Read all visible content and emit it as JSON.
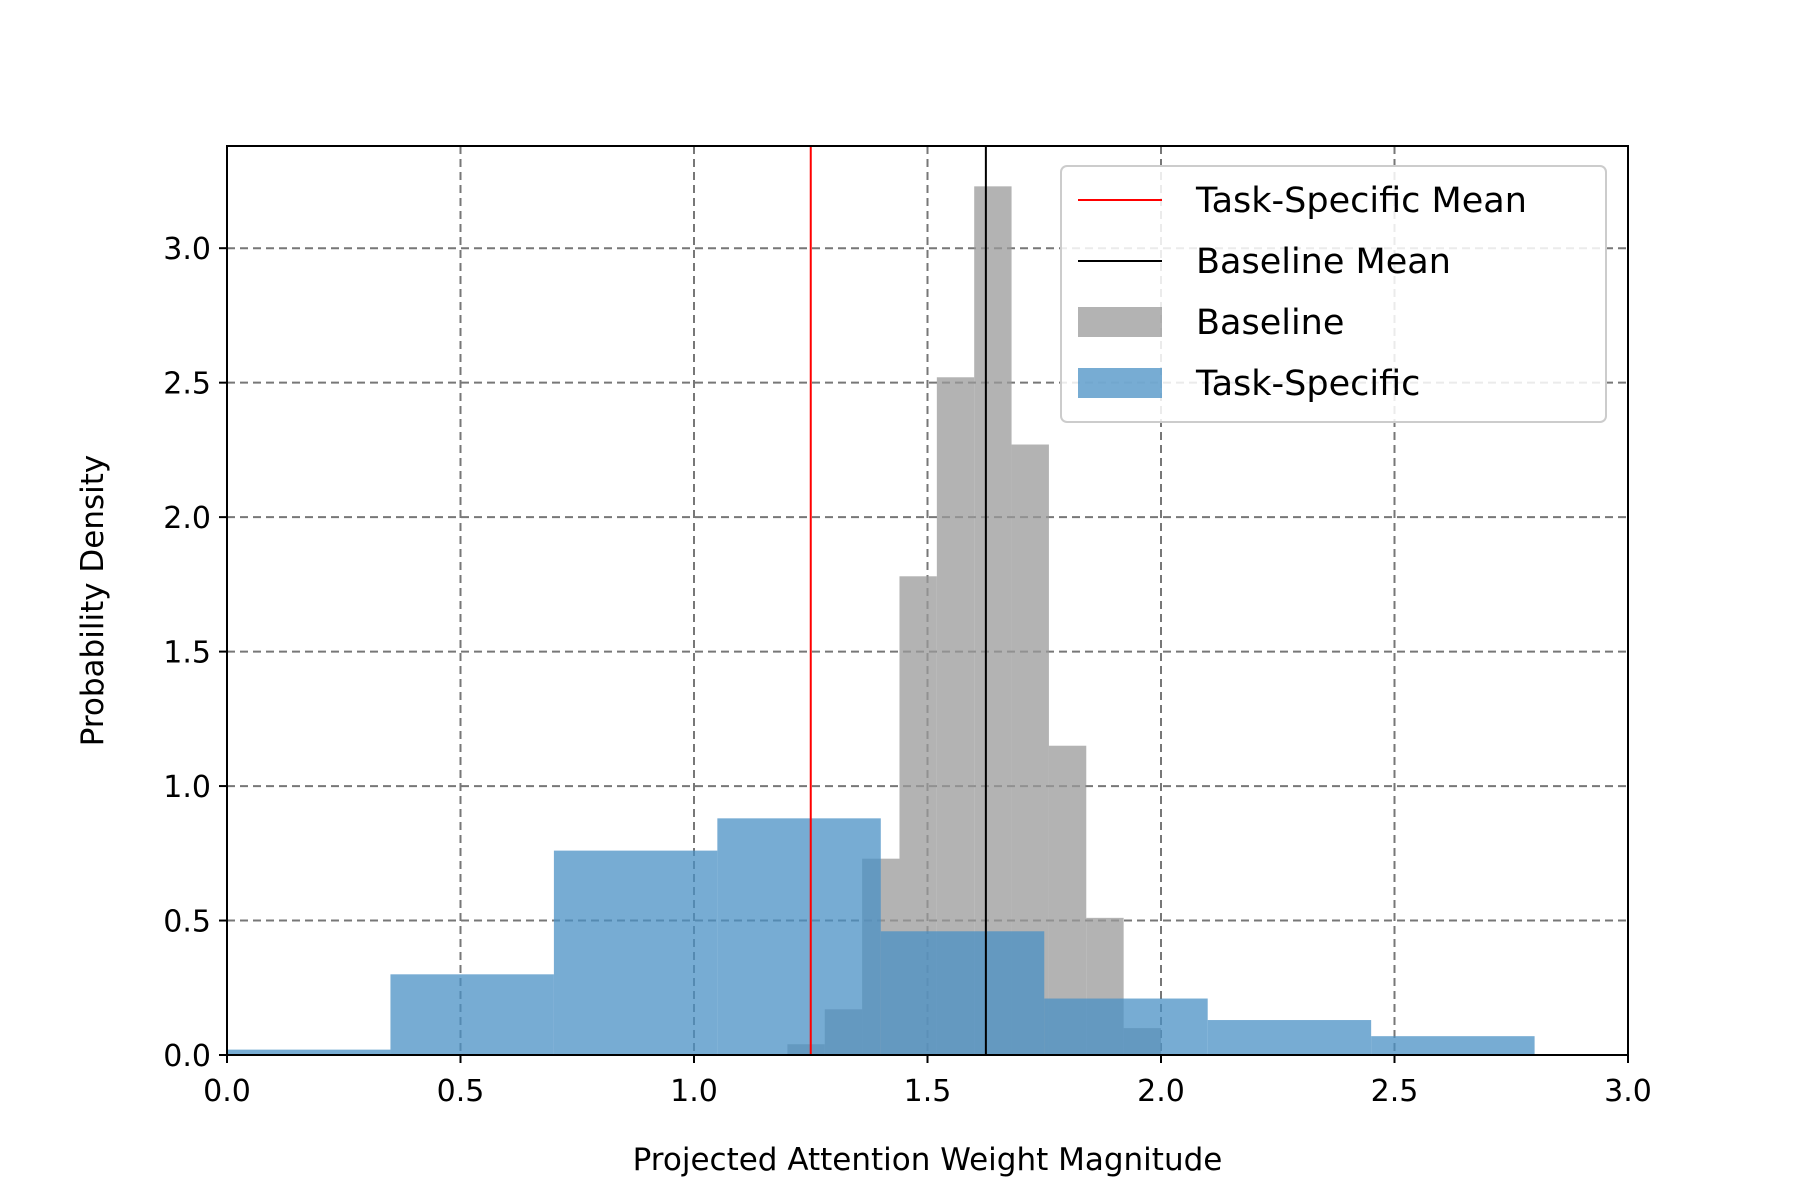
{
  "chart_data": {
    "type": "bar",
    "subtype": "histogram",
    "title": "",
    "xlabel": "Projected Attention Weight Magnitude",
    "ylabel": "Probability Density",
    "xlim": [
      0.0,
      3.0
    ],
    "ylim": [
      0.0,
      3.38
    ],
    "xticks": [
      "0.0",
      "0.5",
      "1.0",
      "1.5",
      "2.0",
      "2.5",
      "3.0"
    ],
    "yticks": [
      "0.0",
      "0.5",
      "1.0",
      "1.5",
      "2.0",
      "2.5",
      "3.0"
    ],
    "grid": true,
    "grid_style": "dashed",
    "legend_position": "top-right",
    "series": [
      {
        "name": "Baseline",
        "color": "#999999",
        "opacity": 0.75,
        "bin_edges": [
          1.2,
          1.28,
          1.36,
          1.44,
          1.52,
          1.6,
          1.68,
          1.76,
          1.84,
          1.92,
          2.0
        ],
        "values": [
          0.04,
          0.17,
          0.73,
          1.78,
          2.52,
          3.23,
          2.27,
          1.15,
          0.51,
          0.1
        ]
      },
      {
        "name": "Task-Specific",
        "color": "#4a90c4",
        "opacity": 0.75,
        "bin_edges": [
          0.0,
          0.35,
          0.7,
          1.05,
          1.4,
          1.75,
          2.1,
          2.45,
          2.8,
          3.15
        ],
        "values": [
          0.02,
          0.3,
          0.76,
          0.88,
          0.46,
          0.21,
          0.13,
          0.07,
          0.0
        ]
      }
    ],
    "mean_lines": [
      {
        "name": "Task-Specific Mean",
        "x": 1.25,
        "color": "#ff0000"
      },
      {
        "name": "Baseline Mean",
        "x": 1.625,
        "color": "#000000"
      }
    ],
    "legend": [
      {
        "label": "Task-Specific Mean",
        "kind": "line",
        "color": "#ff0000"
      },
      {
        "label": "Baseline Mean",
        "kind": "line",
        "color": "#000000"
      },
      {
        "label": "Baseline",
        "kind": "patch",
        "color": "#999999"
      },
      {
        "label": "Task-Specific",
        "kind": "patch",
        "color": "#4a90c4"
      }
    ]
  }
}
